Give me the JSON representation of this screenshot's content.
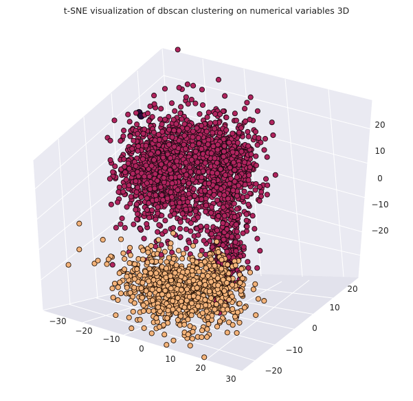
{
  "chart_data": {
    "type": "scatter",
    "projection": "3d",
    "title": "t-SNE visualization of dbscan clustering on numerical variables 3D",
    "grid": true,
    "legend": "none",
    "axes": {
      "x": {
        "ticks": [
          "−30",
          "−20",
          "−10",
          "0",
          "10",
          "20",
          "30"
        ],
        "lim": [
          -35,
          35
        ]
      },
      "y": {
        "ticks": [
          "−20",
          "−10",
          "0",
          "10",
          "20"
        ],
        "lim": [
          -25,
          28
        ]
      },
      "z": {
        "ticks": [
          "20",
          "10",
          "0",
          "−10",
          "−20"
        ],
        "lim": [
          -28,
          28
        ]
      }
    },
    "series": [
      {
        "color": "#b0245e",
        "edgecolor": "#1a0a12",
        "clusters": [
          {
            "cx": -22,
            "cy": 10,
            "cz": 5,
            "sx": 5,
            "sy": 6,
            "sz": 6,
            "n": 450
          },
          {
            "cx": -8,
            "cy": 8,
            "cz": 8,
            "sx": 6,
            "sy": 7,
            "sz": 8,
            "n": 700
          },
          {
            "cx": 8,
            "cy": 12,
            "cz": 12,
            "sx": 6,
            "sy": 6,
            "sz": 6,
            "n": 650
          },
          {
            "cx": 12,
            "cy": 5,
            "cz": -8,
            "sx": 3,
            "sy": 4,
            "sz": 6,
            "n": 250
          }
        ]
      },
      {
        "color": "#f3b37a",
        "edgecolor": "#2a1608",
        "clusters": [
          {
            "cx": 0,
            "cy": -12,
            "cz": -16,
            "sx": 10,
            "sy": 5,
            "sz": 4,
            "n": 650
          },
          {
            "cx": 14,
            "cy": -8,
            "cz": -12,
            "sx": 6,
            "sy": 4,
            "sz": 4,
            "n": 300
          }
        ]
      },
      {
        "color": "#2b0a3d",
        "edgecolor": "#000000",
        "clusters": [
          {
            "cx": -30,
            "cy": 20,
            "cz": 14,
            "sx": 0.5,
            "sy": 0.5,
            "sz": 0.5,
            "n": 3
          }
        ]
      }
    ]
  }
}
